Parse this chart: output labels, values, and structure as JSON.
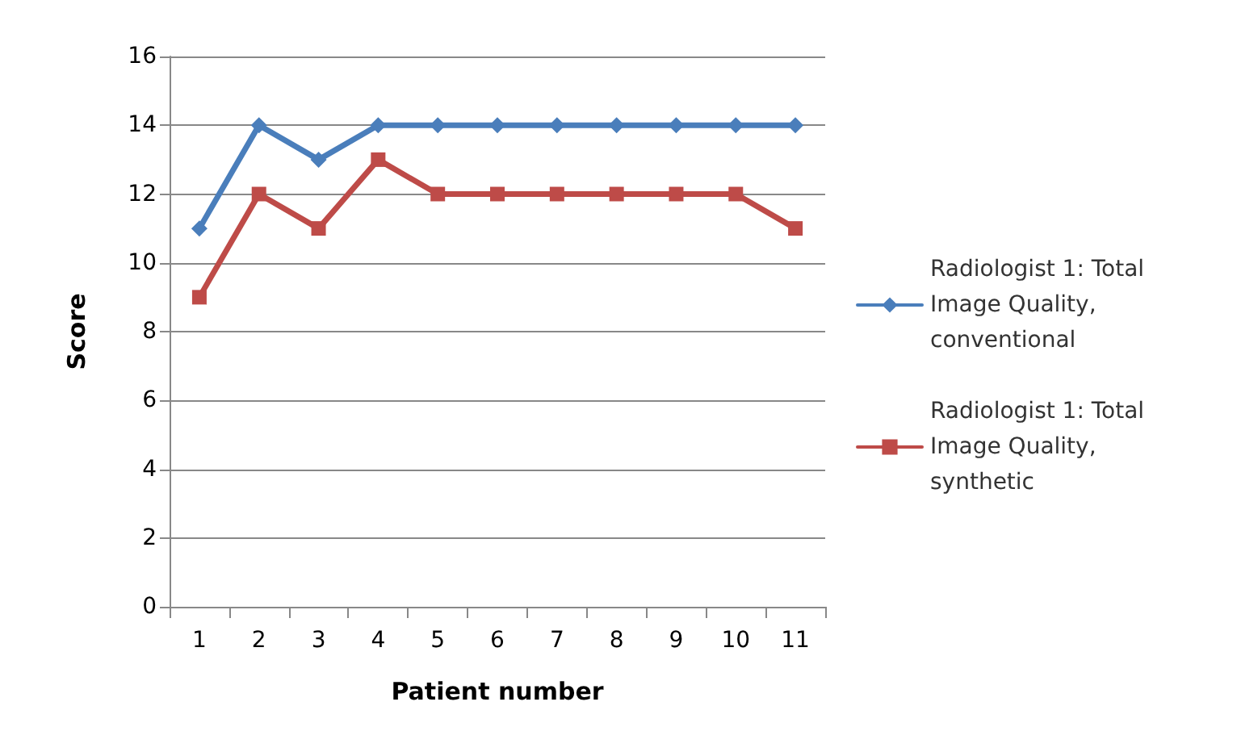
{
  "chart_data": {
    "type": "line",
    "xlabel": "Patient number",
    "ylabel": "Score",
    "categories": [
      "1",
      "2",
      "3",
      "4",
      "5",
      "6",
      "7",
      "8",
      "9",
      "10",
      "11"
    ],
    "series": [
      {
        "name": "Radiologist 1: Total Image Quality, conventional",
        "color": "#4a7ebb",
        "marker": "diamond",
        "values": [
          11,
          14,
          13,
          14,
          14,
          14,
          14,
          14,
          14,
          14,
          14
        ]
      },
      {
        "name": "Radiologist 1: Total Image Quality, synthetic",
        "color": "#be4b48",
        "marker": "square",
        "values": [
          9,
          12,
          11,
          13,
          12,
          12,
          12,
          12,
          12,
          12,
          11
        ]
      }
    ],
    "ylim": [
      0,
      16
    ],
    "yticks": [
      0,
      2,
      4,
      6,
      8,
      10,
      12,
      14,
      16
    ],
    "grid": "y",
    "legend": "right"
  }
}
